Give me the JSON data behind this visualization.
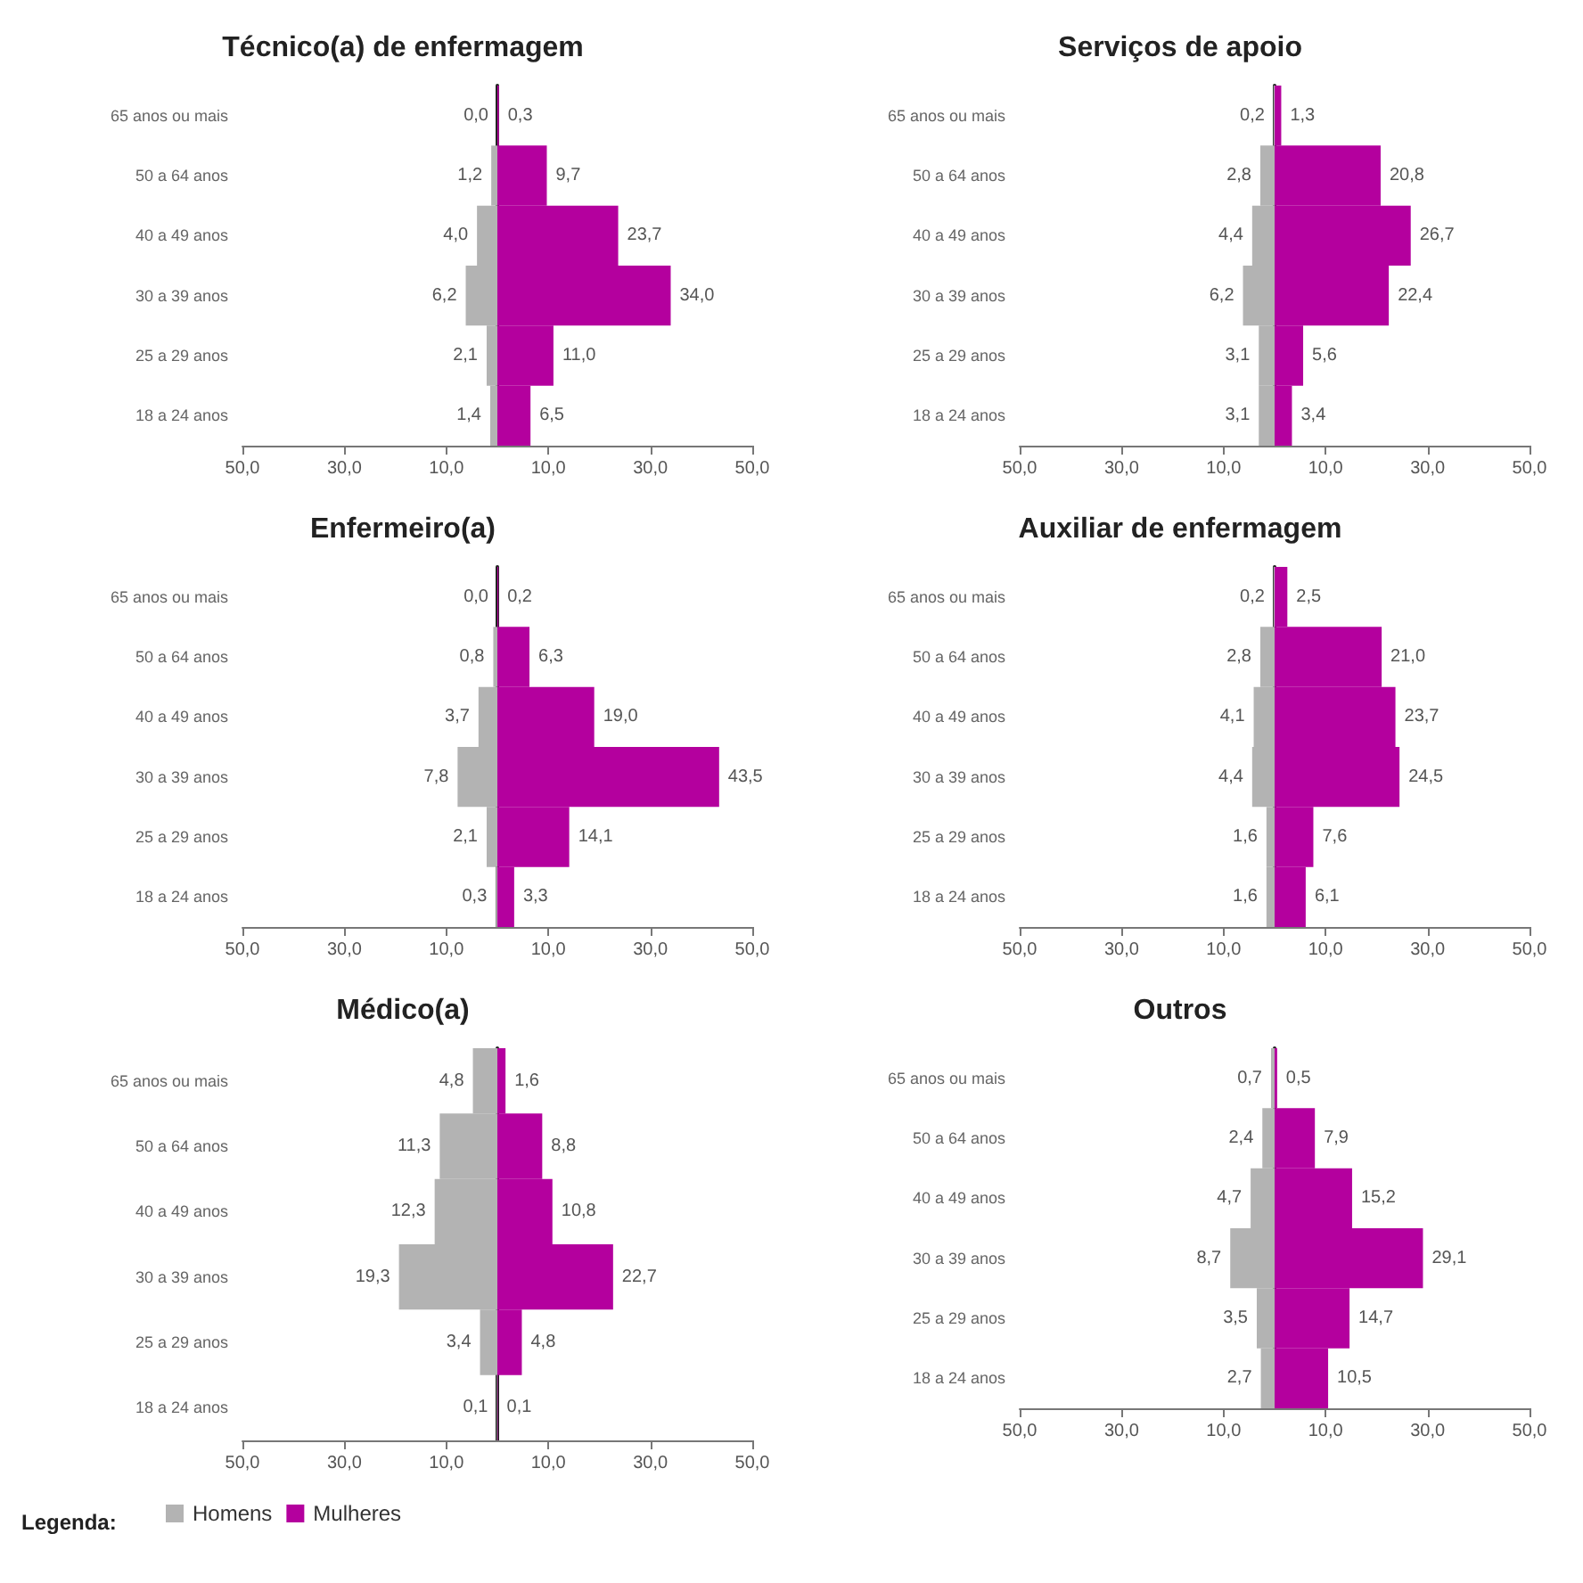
{
  "chart_data": [
    {
      "type": "bar",
      "title": "Técnico(a) de enfermagem",
      "orientation": "horizontal",
      "categories": [
        "65 anos ou mais",
        "50 a 64 anos",
        "40 a 49 anos",
        "30 a 39 anos",
        "25 a 29 anos",
        "18 a 24 anos"
      ],
      "xlim": [
        -50,
        50
      ],
      "xticks": [
        {
          "value": -50,
          "label": "50,0"
        },
        {
          "value": -30,
          "label": "30,0"
        },
        {
          "value": -10,
          "label": "10,0"
        },
        {
          "value": 10,
          "label": "10,0"
        },
        {
          "value": 30,
          "label": "30,0"
        },
        {
          "value": 50,
          "label": "50,0"
        }
      ],
      "series": [
        {
          "color": "#b3b3b3",
          "values": [
            0.0,
            1.2,
            4.0,
            6.2,
            2.1,
            1.4
          ],
          "base": [
            null,
            -1.2,
            -4.0,
            -6.2,
            -2.1,
            -1.4
          ],
          "value_labels": [
            "0,0",
            "1,2",
            "4,0",
            "6,2",
            "2,1",
            "1,4"
          ]
        },
        {
          "color": "#b4009e",
          "values": [
            0.3,
            9.7,
            23.7,
            34.0,
            11.0,
            6.5
          ],
          "value_labels": [
            "0,3",
            "9,7",
            "23,7",
            "34,0",
            "11,0",
            "6,5"
          ]
        }
      ]
    },
    {
      "type": "bar",
      "title": "Serviços de apoio",
      "orientation": "horizontal",
      "categories": [
        "65 anos ou mais",
        "50 a 64 anos",
        "40 a 49 anos",
        "30 a 39 anos",
        "25 a 29 anos",
        "18 a 24 anos"
      ],
      "xlim": [
        -50,
        50
      ],
      "xticks": [
        {
          "value": -50,
          "label": "50,0"
        },
        {
          "value": -30,
          "label": "30,0"
        },
        {
          "value": -10,
          "label": "10,0"
        },
        {
          "value": 10,
          "label": "10,0"
        },
        {
          "value": 30,
          "label": "30,0"
        },
        {
          "value": 50,
          "label": "50,0"
        }
      ],
      "series": [
        {
          "color": "#b3b3b3",
          "values": [
            0.2,
            2.8,
            4.4,
            6.2,
            3.1,
            3.1
          ],
          "base": [
            -0.2,
            -2.8,
            -4.4,
            -6.2,
            -3.1,
            -3.1
          ],
          "value_labels": [
            "0,2",
            "2,8",
            "4,4",
            "6,2",
            "3,1",
            "3,1"
          ]
        },
        {
          "color": "#b4009e",
          "values": [
            1.3,
            20.8,
            26.7,
            22.4,
            5.6,
            3.4
          ],
          "value_labels": [
            "1,3",
            "20,8",
            "26,7",
            "22,4",
            "5,6",
            "3,4"
          ]
        }
      ]
    },
    {
      "type": "bar",
      "title": "Enfermeiro(a)",
      "orientation": "horizontal",
      "categories": [
        "65 anos ou mais",
        "50 a 64 anos",
        "40 a 49 anos",
        "30 a 39 anos",
        "25 a 29 anos",
        "18 a 24 anos"
      ],
      "xlim": [
        -50,
        50
      ],
      "xticks": [
        {
          "value": -50,
          "label": "50,0"
        },
        {
          "value": -30,
          "label": "30,0"
        },
        {
          "value": -10,
          "label": "10,0"
        },
        {
          "value": 10,
          "label": "10,0"
        },
        {
          "value": 30,
          "label": "30,0"
        },
        {
          "value": 50,
          "label": "50,0"
        }
      ],
      "series": [
        {
          "color": "#b3b3b3",
          "values": [
            0.0,
            0.8,
            3.7,
            7.8,
            2.1,
            0.3
          ],
          "base": [
            null,
            -0.8,
            -3.7,
            -7.8,
            -2.1,
            -0.3
          ],
          "value_labels": [
            "0,0",
            "0,8",
            "3,7",
            "7,8",
            "2,1",
            "0,3"
          ]
        },
        {
          "color": "#b4009e",
          "values": [
            0.2,
            6.3,
            19.0,
            43.5,
            14.1,
            3.3
          ],
          "value_labels": [
            "0,2",
            "6,3",
            "19,0",
            "43,5",
            "14,1",
            "3,3"
          ]
        }
      ]
    },
    {
      "type": "bar",
      "title": "Auxiliar de enfermagem",
      "orientation": "horizontal",
      "categories": [
        "65 anos ou mais",
        "50 a 64 anos",
        "40 a 49 anos",
        "30 a 39 anos",
        "25 a 29 anos",
        "18 a 24 anos"
      ],
      "xlim": [
        -50,
        50
      ],
      "xticks": [
        {
          "value": -50,
          "label": "50,0"
        },
        {
          "value": -30,
          "label": "30,0"
        },
        {
          "value": -10,
          "label": "10,0"
        },
        {
          "value": 10,
          "label": "10,0"
        },
        {
          "value": 30,
          "label": "30,0"
        },
        {
          "value": 50,
          "label": "50,0"
        }
      ],
      "series": [
        {
          "color": "#b3b3b3",
          "values": [
            0.2,
            2.8,
            4.1,
            4.4,
            1.6,
            1.6
          ],
          "base": [
            -0.2,
            -2.8,
            -4.1,
            -4.4,
            -1.6,
            -1.6
          ],
          "value_labels": [
            "0,2",
            "2,8",
            "4,1",
            "4,4",
            "1,6",
            "1,6"
          ]
        },
        {
          "color": "#b4009e",
          "values": [
            2.5,
            21.0,
            23.7,
            24.5,
            7.6,
            6.1
          ],
          "value_labels": [
            "2,5",
            "21,0",
            "23,7",
            "24,5",
            "7,6",
            "6,1"
          ]
        }
      ]
    },
    {
      "type": "bar",
      "title": "Médico(a)",
      "orientation": "horizontal",
      "legend": "bottom left",
      "legend_title": "Legenda:",
      "categories": [
        "65 anos ou mais",
        "50 a 64 anos",
        "40 a 49 anos",
        "30 a 39 anos",
        "25 a 29 anos",
        "18 a 24 anos"
      ],
      "xlim": [
        -50,
        50
      ],
      "xticks": [
        {
          "value": -50,
          "label": "50,0"
        },
        {
          "value": -30,
          "label": "30,0"
        },
        {
          "value": -10,
          "label": "10,0"
        },
        {
          "value": 10,
          "label": "10,0"
        },
        {
          "value": 30,
          "label": "30,0"
        },
        {
          "value": 50,
          "label": "50,0"
        }
      ],
      "series": [
        {
          "name": "Homens",
          "color": "#b3b3b3",
          "values": [
            4.8,
            11.3,
            12.3,
            19.3,
            3.4,
            0.1
          ],
          "base": [
            -4.8,
            -11.3,
            -12.3,
            -19.3,
            -3.4,
            -0.1
          ],
          "value_labels": [
            "4,8",
            "11,3",
            "12,3",
            "19,3",
            "3,4",
            "0,1"
          ]
        },
        {
          "name": "Mulheres",
          "color": "#b4009e",
          "values": [
            1.6,
            8.8,
            10.8,
            22.7,
            4.8,
            0.1
          ],
          "value_labels": [
            "1,6",
            "8,8",
            "10,8",
            "22,7",
            "4,8",
            "0,1"
          ]
        }
      ]
    },
    {
      "type": "bar",
      "title": "Outros",
      "orientation": "horizontal",
      "categories": [
        "65 anos ou mais",
        "50 a 64 anos",
        "40 a 49 anos",
        "30 a 39 anos",
        "25 a 29 anos",
        "18 a 24 anos"
      ],
      "xlim": [
        -50,
        50
      ],
      "xticks": [
        {
          "value": -50,
          "label": "50,0"
        },
        {
          "value": -30,
          "label": "30,0"
        },
        {
          "value": -10,
          "label": "10,0"
        },
        {
          "value": 10,
          "label": "10,0"
        },
        {
          "value": 30,
          "label": "30,0"
        },
        {
          "value": 50,
          "label": "50,0"
        }
      ],
      "series": [
        {
          "color": "#b3b3b3",
          "values": [
            0.7,
            2.4,
            4.7,
            8.7,
            3.5,
            2.7
          ],
          "base": [
            -0.7,
            -2.4,
            -4.7,
            -8.7,
            -3.5,
            -2.7
          ],
          "value_labels": [
            "0,7",
            "2,4",
            "4,7",
            "8,7",
            "3,5",
            "2,7"
          ]
        },
        {
          "color": "#b4009e",
          "values": [
            0.5,
            7.9,
            15.2,
            29.1,
            14.7,
            10.5
          ],
          "value_labels": [
            "0,5",
            "7,9",
            "15,2",
            "29,1",
            "14,7",
            "10,5"
          ]
        }
      ]
    }
  ]
}
